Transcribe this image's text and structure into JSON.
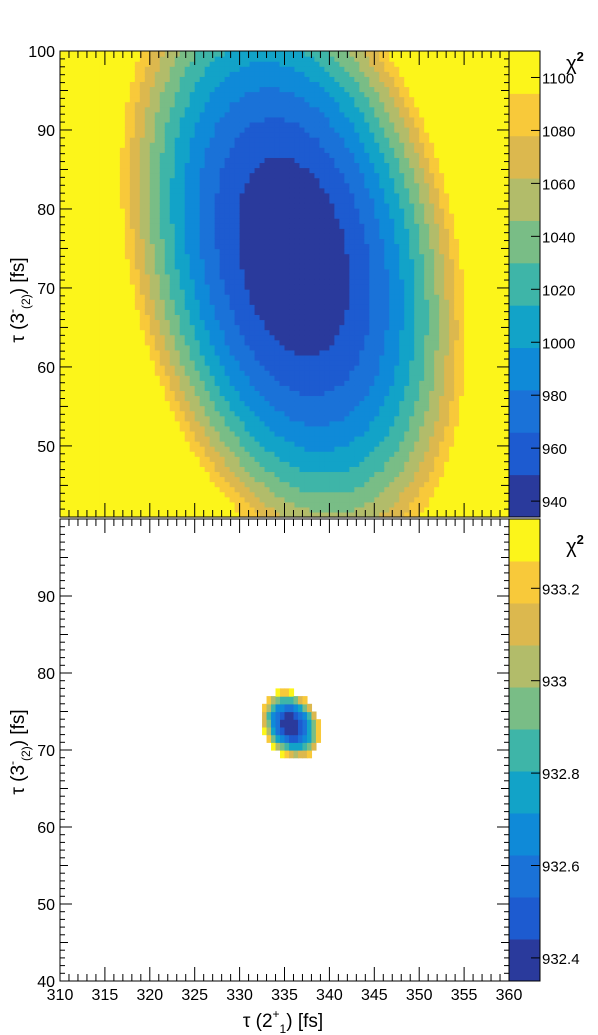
{
  "chart_data": [
    {
      "type": "heatmap",
      "panel": "top",
      "ylabel": "τ (3⁻(2)) [fs]",
      "ylabel_main": "τ (3",
      "ylabel_sup": "-",
      "ylabel_sub": "(2)",
      "ylabel_tail": ") [fs]",
      "xlim": [
        310,
        360
      ],
      "ylim": [
        41,
        100
      ],
      "yticks": [
        50,
        60,
        70,
        80,
        90,
        100
      ],
      "zlabel": "χ²",
      "zlabel_main": "χ",
      "zlabel_sup": "2",
      "zlim": [
        934,
        1110
      ],
      "zticks": [
        940,
        960,
        980,
        1000,
        1020,
        1040,
        1060,
        1080,
        1100
      ],
      "minimum": {
        "x": 336,
        "y": 74,
        "value": 932.4
      }
    },
    {
      "type": "heatmap",
      "panel": "bottom",
      "xlabel": "τ (2⁺1) [fs]",
      "xlabel_main": "τ (2",
      "xlabel_sup": "+",
      "xlabel_sub": "1",
      "xlabel_tail": ") [fs]",
      "ylabel": "τ (3⁻(2)) [fs]",
      "ylabel_main": "τ (3",
      "ylabel_sup": "-",
      "ylabel_sub": "(2)",
      "ylabel_tail": ") [fs]",
      "xlim": [
        310,
        360
      ],
      "ylim": [
        40,
        100
      ],
      "xticks": [
        310,
        315,
        320,
        325,
        330,
        335,
        340,
        345,
        350,
        355,
        360
      ],
      "yticks": [
        40,
        50,
        60,
        70,
        80,
        90
      ],
      "zlabel": "χ²",
      "zlabel_main": "χ",
      "zlabel_sup": "2",
      "zlim": [
        932.35,
        933.35
      ],
      "zticks": [
        "932.4",
        "932.6",
        "932.8",
        "933",
        "933.2"
      ],
      "minimum": {
        "x": 335.7,
        "y": 73.3,
        "value": 932.35
      },
      "region_cut": 933.35
    }
  ],
  "colors": {
    "palette": [
      "#2a3a9c",
      "#1d5bd0",
      "#1a72d8",
      "#0f8ad8",
      "#12a3c8",
      "#3eb5a8",
      "#79bd86",
      "#b2bc6a",
      "#dcb84e",
      "#f8c93a",
      "#fcf51a"
    ],
    "frame": "#000000",
    "background": "#ffffff"
  }
}
